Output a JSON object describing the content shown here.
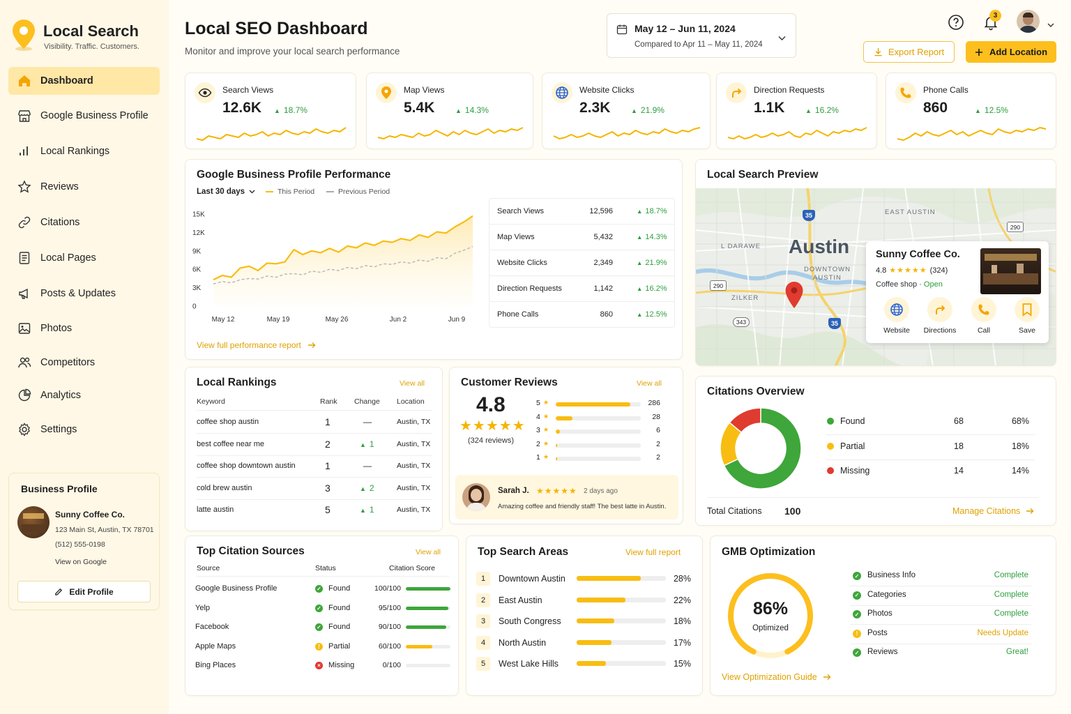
{
  "brand": {
    "title": "Local Search",
    "tagline": "Visibility. Traffic. Customers."
  },
  "nav": [
    {
      "label": "Dashboard",
      "icon": "home-icon",
      "active": true
    },
    {
      "label": "Google Business Profile",
      "icon": "store-icon"
    },
    {
      "label": "Local Rankings",
      "icon": "bar-chart-icon"
    },
    {
      "label": "Reviews",
      "icon": "star-icon"
    },
    {
      "label": "Citations",
      "icon": "link-icon"
    },
    {
      "label": "Local Pages",
      "icon": "document-icon"
    },
    {
      "label": "Posts & Updates",
      "icon": "megaphone-icon"
    },
    {
      "label": "Photos",
      "icon": "image-icon"
    },
    {
      "label": "Competitors",
      "icon": "users-icon"
    },
    {
      "label": "Analytics",
      "icon": "pie-chart-icon"
    },
    {
      "label": "Settings",
      "icon": "gear-icon"
    }
  ],
  "business_profile": {
    "title": "Business Profile",
    "name": "Sunny Coffee Co.",
    "address": "123 Main St, Austin, TX 78701",
    "phone": "(512) 555-0198",
    "view_link": "View on Google",
    "edit_label": "Edit Profile"
  },
  "header": {
    "title": "Local SEO Dashboard",
    "subtitle": "Monitor and improve your local search performance",
    "date_range": "May 12 – Jun 11, 2024",
    "compare": "Compared to Apr 11 – May 11, 2024",
    "notification_count": "3",
    "export_label": "Export Report",
    "add_label": "Add Location"
  },
  "kpis": [
    {
      "label": "Search Views",
      "value": "12.6K",
      "change": "18.7%",
      "icon": "eye-icon"
    },
    {
      "label": "Map Views",
      "value": "5.4K",
      "change": "14.3%",
      "icon": "map-pin-icon"
    },
    {
      "label": "Website Clicks",
      "value": "2.3K",
      "change": "21.9%",
      "icon": "globe-icon"
    },
    {
      "label": "Direction Requests",
      "value": "1.1K",
      "change": "16.2%",
      "icon": "directions-icon"
    },
    {
      "label": "Phone Calls",
      "value": "860",
      "change": "12.5%",
      "icon": "phone-icon"
    }
  ],
  "performance": {
    "title": "Google Business Profile Performance",
    "period_select": "Last 30 days",
    "legend_this": "This Period",
    "legend_prev": "Previous Period",
    "footer_link": "View full performance report",
    "table": [
      {
        "metric": "Search Views",
        "value": "12,596",
        "change": "18.7%"
      },
      {
        "metric": "Map Views",
        "value": "5,432",
        "change": "14.3%"
      },
      {
        "metric": "Website Clicks",
        "value": "2,349",
        "change": "21.9%"
      },
      {
        "metric": "Direction Requests",
        "value": "1,142",
        "change": "16.2%"
      },
      {
        "metric": "Phone Calls",
        "value": "860",
        "change": "12.5%"
      }
    ]
  },
  "chart_data": {
    "type": "line",
    "x_ticks": [
      "May 12",
      "May 19",
      "May 26",
      "Jun 2",
      "Jun 9"
    ],
    "y_ticks": [
      "15K",
      "12K",
      "9K",
      "6K",
      "3K",
      "0"
    ],
    "ylim": [
      0,
      15000
    ],
    "series": [
      {
        "name": "This Period",
        "values": [
          4300,
          5000,
          4700,
          6200,
          6500,
          5800,
          7000,
          6900,
          7200,
          9200,
          8400,
          9000,
          8700,
          9400,
          8800,
          9800,
          9500,
          10300,
          9900,
          10600,
          10400,
          11000,
          10700,
          11600,
          11200,
          12100,
          11900,
          12900,
          13700,
          14700
        ]
      },
      {
        "name": "Previous Period",
        "values": [
          3600,
          4000,
          3800,
          4300,
          4500,
          4400,
          4900,
          4700,
          5200,
          5300,
          5100,
          5700,
          5500,
          6000,
          5800,
          6300,
          6100,
          6600,
          6400,
          6900,
          6800,
          7200,
          7000,
          7500,
          7300,
          7900,
          7700,
          8600,
          9100,
          9700
        ]
      }
    ]
  },
  "map_preview": {
    "title": "Local Search Preview",
    "labels": {
      "city": "Austin",
      "downtown": "DOWNTOWN\nAUSTIN",
      "east": "EAST AUSTIN",
      "zilker": "ZILKER",
      "west": "L DARAWE",
      "h35a": "35",
      "h35b": "35",
      "h290a": "290",
      "h290b": "290",
      "h343": "343"
    },
    "listing": {
      "name": "Sunny Coffee Co.",
      "rating": "4.8",
      "reviews": "(324)",
      "category": "Coffee shop",
      "status": "Open",
      "actions": [
        {
          "label": "Website",
          "icon": "globe-icon"
        },
        {
          "label": "Directions",
          "icon": "directions-icon"
        },
        {
          "label": "Call",
          "icon": "phone-icon"
        },
        {
          "label": "Save",
          "icon": "bookmark-icon"
        }
      ]
    }
  },
  "rankings": {
    "title": "Local Rankings",
    "view_all": "View all",
    "headers": [
      "Keyword",
      "Rank",
      "Change",
      "Location"
    ],
    "rows": [
      {
        "keyword": "coffee shop austin",
        "rank": "1",
        "change": "—",
        "up": false,
        "location": "Austin, TX"
      },
      {
        "keyword": "best coffee near me",
        "rank": "2",
        "change": "1",
        "up": true,
        "location": "Austin, TX"
      },
      {
        "keyword": "coffee shop downtown austin",
        "rank": "1",
        "change": "—",
        "up": false,
        "location": "Austin, TX"
      },
      {
        "keyword": "cold brew austin",
        "rank": "3",
        "change": "2",
        "up": true,
        "location": "Austin, TX"
      },
      {
        "keyword": "latte austin",
        "rank": "5",
        "change": "1",
        "up": true,
        "location": "Austin, TX"
      }
    ]
  },
  "reviews": {
    "title": "Customer Reviews",
    "view_all": "View all",
    "rating": "4.8",
    "count": "(324 reviews)",
    "dist": [
      {
        "star": "5",
        "count": "286",
        "frac": 0.88
      },
      {
        "star": "4",
        "count": "28",
        "frac": 0.2
      },
      {
        "star": "3",
        "count": "6",
        "frac": 0.05
      },
      {
        "star": "2",
        "count": "2",
        "frac": 0.015
      },
      {
        "star": "1",
        "count": "2",
        "frac": 0.015
      }
    ],
    "latest": {
      "name": "Sarah J.",
      "when": "2 days ago",
      "text": "Amazing coffee and friendly staff! The best latte in Austin."
    }
  },
  "citations": {
    "title": "Citations Overview",
    "rows": [
      {
        "label": "Found",
        "count": "68",
        "pct": "68%",
        "color": "#3ea63a",
        "value": 68
      },
      {
        "label": "Partial",
        "count": "18",
        "pct": "18%",
        "color": "#f8bd12",
        "value": 18
      },
      {
        "label": "Missing",
        "count": "14",
        "pct": "14%",
        "color": "#e03b2f",
        "value": 14
      }
    ],
    "total_label": "Total Citations",
    "total": "100",
    "manage": "Manage Citations"
  },
  "sources": {
    "title": "Top Citation Sources",
    "view_all": "View all",
    "headers": [
      "Source",
      "Status",
      "Citation Score"
    ],
    "rows": [
      {
        "source": "Google Business Profile",
        "status": "Found",
        "kind": "found",
        "score": "100/100",
        "frac": 1.0
      },
      {
        "source": "Yelp",
        "status": "Found",
        "kind": "found",
        "score": "95/100",
        "frac": 0.95
      },
      {
        "source": "Facebook",
        "status": "Found",
        "kind": "found",
        "score": "90/100",
        "frac": 0.9
      },
      {
        "source": "Apple Maps",
        "status": "Partial",
        "kind": "partial",
        "score": "60/100",
        "frac": 0.6
      },
      {
        "source": "Bing Places",
        "status": "Missing",
        "kind": "missing",
        "score": "0/100",
        "frac": 0.0
      }
    ]
  },
  "areas": {
    "title": "Top Search Areas",
    "view_full": "View full report",
    "rows": [
      {
        "n": "1",
        "name": "Downtown Austin",
        "pct": "28%",
        "frac": 0.72
      },
      {
        "n": "2",
        "name": "East Austin",
        "pct": "22%",
        "frac": 0.55
      },
      {
        "n": "3",
        "name": "South Congress",
        "pct": "18%",
        "frac": 0.42
      },
      {
        "n": "4",
        "name": "North Austin",
        "pct": "17%",
        "frac": 0.39
      },
      {
        "n": "5",
        "name": "West Lake Hills",
        "pct": "15%",
        "frac": 0.33
      }
    ]
  },
  "gmb": {
    "title": "GMB Optimization",
    "score": "86%",
    "score_value": 0.86,
    "score_label": "Optimized",
    "guide": "View Optimization Guide",
    "items": [
      {
        "label": "Business Info",
        "status": "Complete",
        "kind": "ok"
      },
      {
        "label": "Categories",
        "status": "Complete",
        "kind": "ok"
      },
      {
        "label": "Photos",
        "status": "Complete",
        "kind": "ok"
      },
      {
        "label": "Posts",
        "status": "Needs Update",
        "kind": "warn"
      },
      {
        "label": "Reviews",
        "status": "Great!",
        "kind": "ok"
      }
    ]
  },
  "colors": {
    "accent": "#fdbf1e",
    "green": "#3ea63a",
    "red": "#e03b2f",
    "sidebar": "#fff8e6"
  }
}
